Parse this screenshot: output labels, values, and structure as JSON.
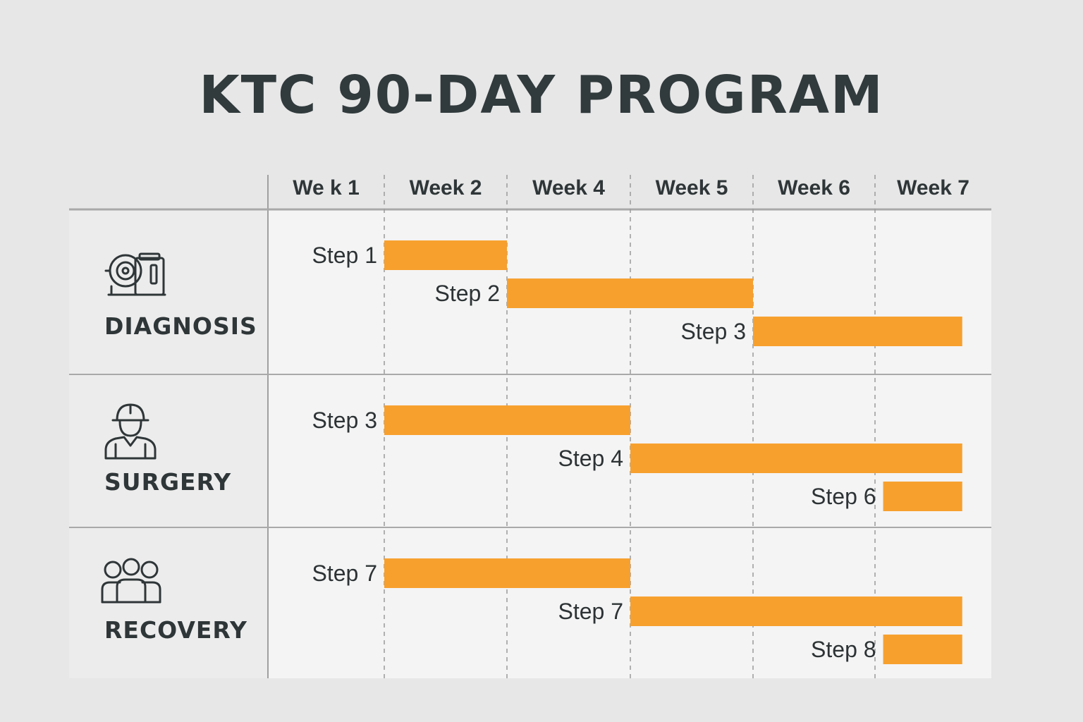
{
  "title": "KTC 90-DAY PROGRAM",
  "chart_data": {
    "type": "gantt",
    "title": "KTC 90-DAY PROGRAM",
    "columns": [
      "We k 1",
      "Week 2",
      "Week 4",
      "Week 5",
      "Week 6",
      "Week 7"
    ],
    "grid": "dashed vertical lines between week columns",
    "bar_color": "#f7a02e",
    "groups": [
      {
        "name": "DIAGNOSIS",
        "icon": "machine-icon",
        "tasks": [
          {
            "label": "Step 1",
            "start": 1,
            "end": 2
          },
          {
            "label": "Step 2",
            "start": 2,
            "end": 4
          },
          {
            "label": "Step 3",
            "start": 4,
            "end": 5.75
          }
        ]
      },
      {
        "name": "SURGERY",
        "icon": "surgeon-icon",
        "tasks": [
          {
            "label": "Step 3",
            "start": 1,
            "end": 3
          },
          {
            "label": "Step 4",
            "start": 3,
            "end": 5.75
          },
          {
            "label": "Step 6",
            "start": 5.07,
            "end": 5.75
          }
        ]
      },
      {
        "name": "RECOVERY",
        "icon": "people-group-icon",
        "tasks": [
          {
            "label": "Step 7",
            "start": 1,
            "end": 3
          },
          {
            "label": "Step 7",
            "start": 3,
            "end": 5.75
          },
          {
            "label": "Step 8",
            "start": 5.07,
            "end": 5.75
          }
        ]
      }
    ]
  },
  "colors": {
    "background": "#e7e7e7",
    "panel": "#f4f4f4",
    "label_column": "#ececec",
    "bar": "#f7a02e",
    "text": "#2f3638",
    "grid": "#9a9a9a"
  }
}
